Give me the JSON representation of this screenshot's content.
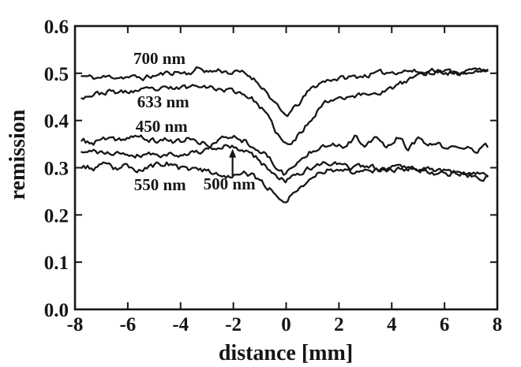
{
  "figure": {
    "background": "#ffffff",
    "ink": "#161616",
    "description": "Scanned line plot of optical remission versus lateral distance for five wavelengths, each trace dipping near distance 0 mm"
  },
  "chart_data": {
    "type": "line",
    "title": "",
    "xlabel": "distance [mm]",
    "ylabel": "remission",
    "xlim": [
      -8,
      8
    ],
    "ylim": [
      0.0,
      0.6
    ],
    "xticks": [
      -8,
      -6,
      -4,
      -2,
      0,
      2,
      4,
      6,
      8
    ],
    "yticks": [
      0.0,
      0.1,
      0.2,
      0.3,
      0.4,
      0.5,
      0.6
    ],
    "grid": false,
    "legend": "inline-labels",
    "x_range_data": [
      -7.75,
      7.6
    ],
    "series": [
      {
        "name": "700 nm",
        "dip_minimum": 0.41,
        "baseline": 0.5,
        "noise_amplitude": 0.0045,
        "seed": 11,
        "keypoints": [
          [
            -7.75,
            0.494
          ],
          [
            -7.2,
            0.49
          ],
          [
            -6.6,
            0.493
          ],
          [
            -6.0,
            0.492
          ],
          [
            -5.4,
            0.49
          ],
          [
            -4.8,
            0.497
          ],
          [
            -4.2,
            0.503
          ],
          [
            -3.7,
            0.5
          ],
          [
            -3.3,
            0.511
          ],
          [
            -2.9,
            0.503
          ],
          [
            -2.5,
            0.507
          ],
          [
            -2.1,
            0.501
          ],
          [
            -1.7,
            0.502
          ],
          [
            -1.3,
            0.492
          ],
          [
            -0.9,
            0.472
          ],
          [
            -0.5,
            0.442
          ],
          [
            -0.2,
            0.418
          ],
          [
            0.0,
            0.41
          ],
          [
            0.25,
            0.422
          ],
          [
            0.55,
            0.44
          ],
          [
            0.9,
            0.465
          ],
          [
            1.3,
            0.48
          ],
          [
            1.7,
            0.488
          ],
          [
            2.2,
            0.49
          ],
          [
            2.8,
            0.494
          ],
          [
            3.4,
            0.499
          ],
          [
            4.0,
            0.503
          ],
          [
            4.6,
            0.506
          ],
          [
            5.2,
            0.501
          ],
          [
            5.8,
            0.505
          ],
          [
            6.4,
            0.503
          ],
          [
            7.0,
            0.506
          ],
          [
            7.6,
            0.509
          ]
        ]
      },
      {
        "name": "633 nm",
        "dip_minimum": 0.345,
        "baseline": 0.46,
        "noise_amplitude": 0.0045,
        "seed": 23,
        "keypoints": [
          [
            -7.75,
            0.451
          ],
          [
            -7.2,
            0.456
          ],
          [
            -6.7,
            0.461
          ],
          [
            -6.2,
            0.459
          ],
          [
            -5.7,
            0.463
          ],
          [
            -5.2,
            0.464
          ],
          [
            -4.7,
            0.466
          ],
          [
            -4.2,
            0.468
          ],
          [
            -3.7,
            0.471
          ],
          [
            -3.2,
            0.478
          ],
          [
            -2.8,
            0.468
          ],
          [
            -2.4,
            0.466
          ],
          [
            -2.0,
            0.463
          ],
          [
            -1.6,
            0.457
          ],
          [
            -1.2,
            0.442
          ],
          [
            -0.8,
            0.417
          ],
          [
            -0.4,
            0.378
          ],
          [
            -0.1,
            0.352
          ],
          [
            0.1,
            0.346
          ],
          [
            0.35,
            0.36
          ],
          [
            0.7,
            0.385
          ],
          [
            1.05,
            0.412
          ],
          [
            1.4,
            0.436
          ],
          [
            1.8,
            0.447
          ],
          [
            2.2,
            0.451
          ],
          [
            2.7,
            0.453
          ],
          [
            3.2,
            0.457
          ],
          [
            3.7,
            0.462
          ],
          [
            4.1,
            0.47
          ],
          [
            4.5,
            0.481
          ],
          [
            4.9,
            0.494
          ],
          [
            5.3,
            0.502
          ],
          [
            5.7,
            0.506
          ],
          [
            6.1,
            0.502
          ],
          [
            6.6,
            0.5
          ],
          [
            7.1,
            0.503
          ],
          [
            7.6,
            0.506
          ]
        ]
      },
      {
        "name": "450 nm",
        "dip_minimum": 0.288,
        "baseline": 0.357,
        "noise_amplitude": 0.005,
        "seed": 37,
        "keypoints": [
          [
            -7.75,
            0.357
          ],
          [
            -7.3,
            0.352
          ],
          [
            -6.9,
            0.361
          ],
          [
            -6.5,
            0.356
          ],
          [
            -6.1,
            0.363
          ],
          [
            -5.7,
            0.367
          ],
          [
            -5.3,
            0.359
          ],
          [
            -4.9,
            0.356
          ],
          [
            -4.5,
            0.361
          ],
          [
            -4.1,
            0.354
          ],
          [
            -3.7,
            0.362
          ],
          [
            -3.3,
            0.351
          ],
          [
            -2.9,
            0.349
          ],
          [
            -2.5,
            0.358
          ],
          [
            -2.1,
            0.368
          ],
          [
            -1.7,
            0.361
          ],
          [
            -1.3,
            0.349
          ],
          [
            -0.9,
            0.333
          ],
          [
            -0.5,
            0.31
          ],
          [
            -0.1,
            0.288
          ],
          [
            0.2,
            0.298
          ],
          [
            0.6,
            0.318
          ],
          [
            1.0,
            0.338
          ],
          [
            1.4,
            0.35
          ],
          [
            1.8,
            0.352
          ],
          [
            2.2,
            0.346
          ],
          [
            2.6,
            0.366
          ],
          [
            3.0,
            0.339
          ],
          [
            3.4,
            0.368
          ],
          [
            3.8,
            0.34
          ],
          [
            4.2,
            0.364
          ],
          [
            4.6,
            0.342
          ],
          [
            5.0,
            0.358
          ],
          [
            5.4,
            0.349
          ],
          [
            5.8,
            0.347
          ],
          [
            6.2,
            0.342
          ],
          [
            6.6,
            0.339
          ],
          [
            7.0,
            0.342
          ],
          [
            7.3,
            0.338
          ],
          [
            7.6,
            0.345
          ]
        ]
      },
      {
        "name": "500 nm",
        "dip_minimum": 0.273,
        "baseline": 0.33,
        "noise_amplitude": 0.0045,
        "seed": 41,
        "keypoints": [
          [
            -7.75,
            0.33
          ],
          [
            -7.2,
            0.334
          ],
          [
            -6.7,
            0.329
          ],
          [
            -6.2,
            0.332
          ],
          [
            -5.7,
            0.327
          ],
          [
            -5.2,
            0.33
          ],
          [
            -4.7,
            0.326
          ],
          [
            -4.2,
            0.33
          ],
          [
            -3.7,
            0.331
          ],
          [
            -3.2,
            0.334
          ],
          [
            -2.7,
            0.339
          ],
          [
            -2.2,
            0.347
          ],
          [
            -1.9,
            0.341
          ],
          [
            -1.5,
            0.334
          ],
          [
            -1.1,
            0.32
          ],
          [
            -0.7,
            0.298
          ],
          [
            -0.3,
            0.28
          ],
          [
            0.0,
            0.273
          ],
          [
            0.3,
            0.281
          ],
          [
            0.7,
            0.292
          ],
          [
            1.1,
            0.304
          ],
          [
            1.5,
            0.311
          ],
          [
            2.0,
            0.306
          ],
          [
            2.5,
            0.3
          ],
          [
            3.0,
            0.303
          ],
          [
            3.5,
            0.299
          ],
          [
            4.0,
            0.301
          ],
          [
            4.5,
            0.304
          ],
          [
            5.0,
            0.299
          ],
          [
            5.5,
            0.297
          ],
          [
            6.0,
            0.294
          ],
          [
            6.5,
            0.289
          ],
          [
            7.0,
            0.287
          ],
          [
            7.6,
            0.283
          ]
        ]
      },
      {
        "name": "550 nm",
        "dip_minimum": 0.23,
        "baseline": 0.3,
        "noise_amplitude": 0.005,
        "seed": 53,
        "keypoints": [
          [
            -7.75,
            0.304
          ],
          [
            -7.3,
            0.299
          ],
          [
            -6.9,
            0.305
          ],
          [
            -6.5,
            0.297
          ],
          [
            -6.1,
            0.303
          ],
          [
            -5.7,
            0.296
          ],
          [
            -5.3,
            0.3
          ],
          [
            -4.9,
            0.305
          ],
          [
            -4.5,
            0.31
          ],
          [
            -4.1,
            0.299
          ],
          [
            -3.7,
            0.293
          ],
          [
            -3.3,
            0.3
          ],
          [
            -2.9,
            0.291
          ],
          [
            -2.5,
            0.287
          ],
          [
            -2.1,
            0.283
          ],
          [
            -1.7,
            0.289
          ],
          [
            -1.3,
            0.282
          ],
          [
            -0.9,
            0.27
          ],
          [
            -0.5,
            0.25
          ],
          [
            -0.1,
            0.231
          ],
          [
            0.15,
            0.239
          ],
          [
            0.5,
            0.257
          ],
          [
            0.9,
            0.277
          ],
          [
            1.3,
            0.291
          ],
          [
            1.7,
            0.299
          ],
          [
            2.1,
            0.295
          ],
          [
            2.5,
            0.291
          ],
          [
            3.0,
            0.299
          ],
          [
            3.5,
            0.294
          ],
          [
            4.0,
            0.292
          ],
          [
            4.5,
            0.299
          ],
          [
            5.0,
            0.297
          ],
          [
            5.5,
            0.291
          ],
          [
            6.0,
            0.287
          ],
          [
            6.5,
            0.289
          ],
          [
            7.0,
            0.284
          ],
          [
            7.6,
            0.279
          ]
        ]
      }
    ],
    "annotations": {
      "labels": [
        {
          "text": "700 nm",
          "x": -4.8,
          "y": 0.533
        },
        {
          "text": "633 nm",
          "x": -4.66,
          "y": 0.441
        },
        {
          "text": "450 nm",
          "x": -4.72,
          "y": 0.389
        },
        {
          "text": "550 nm",
          "x": -4.78,
          "y": 0.266
        },
        {
          "text": "500 nm",
          "x": -2.15,
          "y": 0.267
        }
      ],
      "arrow": {
        "points_to": "500 nm",
        "x": -2.03,
        "y_from": 0.282,
        "y_to": 0.34
      }
    }
  }
}
